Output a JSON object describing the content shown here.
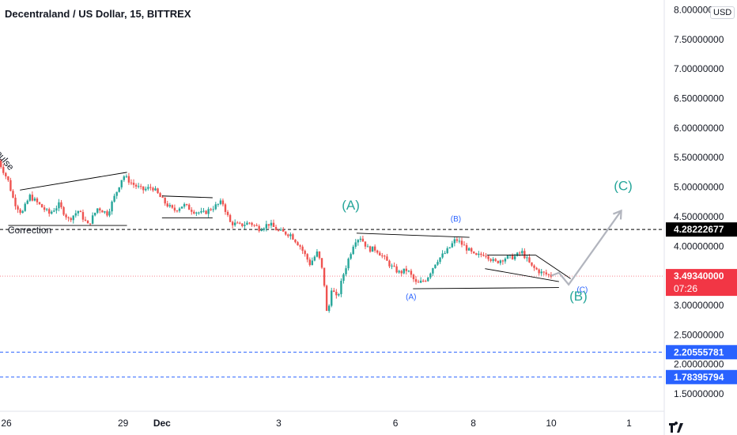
{
  "header": {
    "title": "Decentraland / US Dollar, 15, BITTREX",
    "currency": "USD"
  },
  "colors": {
    "candle_up": "#26a69a",
    "candle_down": "#ef5350",
    "wave_teal": "#26a69a",
    "wave_blue": "#2962ff",
    "price_red": "#f23645",
    "resistance_black": "#000000",
    "support_blue": "#2962ff",
    "projection_gray": "#b2b5be"
  },
  "chart_data": {
    "type": "candlestick",
    "ylim": [
      1.2,
      8.0
    ],
    "y_ticks": [
      8.0,
      7.5,
      7.0,
      6.5,
      6.0,
      5.5,
      5.0,
      4.5,
      4.0,
      3.5,
      3.0,
      2.5,
      2.0,
      1.5
    ],
    "y_tick_labels": [
      "8.00000000",
      "7.50000000",
      "7.00000000",
      "6.50000000",
      "6.00000000",
      "5.50000000",
      "5.00000000",
      "4.50000000",
      "4.00000000",
      "3.50000000",
      "3.00000000",
      "2.50000000",
      "2.00000000",
      "1.50000000"
    ],
    "x_ticks": [
      {
        "label": "26",
        "day": 26.0
      },
      {
        "label": "29",
        "day": 29.0
      },
      {
        "label": "Dec",
        "day": 30.0
      },
      {
        "label": "3",
        "day": 33.0
      },
      {
        "label": "6",
        "day": 36.0
      },
      {
        "label": "8",
        "day": 38.0
      },
      {
        "label": "10",
        "day": 40.0
      },
      {
        "label": "1",
        "day": 42.0
      }
    ],
    "price_path": [
      [
        25.8,
        5.45
      ],
      [
        26.05,
        5.1
      ],
      [
        26.2,
        4.75
      ],
      [
        26.4,
        4.55
      ],
      [
        26.6,
        4.85
      ],
      [
        26.85,
        4.7
      ],
      [
        27.1,
        4.55
      ],
      [
        27.35,
        4.7
      ],
      [
        27.6,
        4.45
      ],
      [
        27.85,
        4.6
      ],
      [
        28.1,
        4.35
      ],
      [
        28.35,
        4.65
      ],
      [
        28.6,
        4.55
      ],
      [
        28.85,
        4.95
      ],
      [
        29.0,
        5.2
      ],
      [
        29.25,
        5.05
      ],
      [
        29.5,
        4.95
      ],
      [
        29.75,
        5.0
      ],
      [
        30.05,
        4.75
      ],
      [
        30.3,
        4.6
      ],
      [
        30.55,
        4.7
      ],
      [
        30.8,
        4.6
      ],
      [
        31.05,
        4.55
      ],
      [
        31.3,
        4.65
      ],
      [
        31.55,
        4.75
      ],
      [
        31.75,
        4.4
      ],
      [
        32.0,
        4.35
      ],
      [
        32.25,
        4.4
      ],
      [
        32.5,
        4.3
      ],
      [
        32.75,
        4.38
      ],
      [
        33.0,
        4.25
      ],
      [
        33.3,
        4.2
      ],
      [
        33.55,
        4.0
      ],
      [
        33.8,
        3.7
      ],
      [
        34.0,
        3.9
      ],
      [
        34.15,
        3.5
      ],
      [
        34.25,
        2.75
      ],
      [
        34.35,
        3.3
      ],
      [
        34.5,
        3.1
      ],
      [
        34.65,
        3.5
      ],
      [
        34.8,
        3.8
      ],
      [
        34.95,
        4.1
      ],
      [
        35.1,
        4.15
      ],
      [
        35.3,
        3.95
      ],
      [
        35.5,
        3.95
      ],
      [
        35.7,
        3.8
      ],
      [
        35.9,
        3.65
      ],
      [
        36.1,
        3.55
      ],
      [
        36.3,
        3.6
      ],
      [
        36.55,
        3.35
      ],
      [
        36.8,
        3.45
      ],
      [
        37.05,
        3.75
      ],
      [
        37.3,
        3.9
      ],
      [
        37.55,
        4.12
      ],
      [
        37.8,
        3.98
      ],
      [
        38.05,
        3.82
      ],
      [
        38.3,
        3.88
      ],
      [
        38.55,
        3.72
      ],
      [
        38.8,
        3.8
      ],
      [
        39.05,
        3.82
      ],
      [
        39.25,
        3.9
      ],
      [
        39.5,
        3.65
      ],
      [
        39.75,
        3.55
      ],
      [
        40.0,
        3.5
      ]
    ],
    "price_lines": [
      {
        "value": 4.28222677,
        "label": "4.28222677",
        "style": "resistance"
      },
      {
        "value": 3.4934,
        "label": "3.49340000",
        "countdown": "07:26",
        "style": "current"
      },
      {
        "value": 2.20555781,
        "label": "2.20555781",
        "style": "support"
      },
      {
        "value": 1.78395794,
        "label": "1.78395794",
        "style": "support"
      }
    ],
    "trendlines": [
      {
        "from": [
          26.05,
          4.35
        ],
        "to": [
          29.1,
          4.35
        ]
      },
      {
        "from": [
          26.35,
          4.95
        ],
        "to": [
          29.1,
          5.25
        ]
      },
      {
        "from": [
          30.0,
          4.85
        ],
        "to": [
          31.3,
          4.82
        ]
      },
      {
        "from": [
          30.0,
          4.48
        ],
        "to": [
          31.3,
          4.48
        ]
      },
      {
        "from": [
          35.0,
          4.22
        ],
        "to": [
          37.9,
          4.15
        ]
      },
      {
        "from": [
          36.45,
          3.28
        ],
        "to": [
          40.2,
          3.3
        ]
      },
      {
        "from": [
          38.35,
          3.85
        ],
        "to": [
          39.6,
          3.85
        ]
      },
      {
        "from": [
          38.3,
          3.62
        ],
        "to": [
          40.2,
          3.4
        ]
      },
      {
        "from": [
          39.6,
          3.85
        ],
        "to": [
          40.5,
          3.45
        ]
      }
    ],
    "projection": [
      [
        40.0,
        3.5
      ],
      [
        40.2,
        3.55
      ],
      [
        40.45,
        3.35
      ],
      [
        41.8,
        4.6
      ]
    ],
    "annotations": [
      {
        "text": "(A)",
        "x": 34.85,
        "y": 4.62,
        "style": "teal-large"
      },
      {
        "text": "(B)",
        "x": 37.55,
        "y": 4.42,
        "style": "blue-small"
      },
      {
        "text": "(A)",
        "x": 36.4,
        "y": 3.1,
        "style": "blue-small"
      },
      {
        "text": "(C)",
        "x": 40.8,
        "y": 3.22,
        "style": "blue-small"
      },
      {
        "text": "(B)",
        "x": 40.7,
        "y": 3.08,
        "style": "teal-large"
      },
      {
        "text": "(C)",
        "x": 41.85,
        "y": 4.95,
        "style": "teal-large"
      },
      {
        "text": "Correction",
        "x": 26.6,
        "y": 4.22,
        "style": "black"
      },
      {
        "text": "pulse",
        "x": 25.9,
        "y": 5.42,
        "style": "black-rotated"
      }
    ]
  }
}
